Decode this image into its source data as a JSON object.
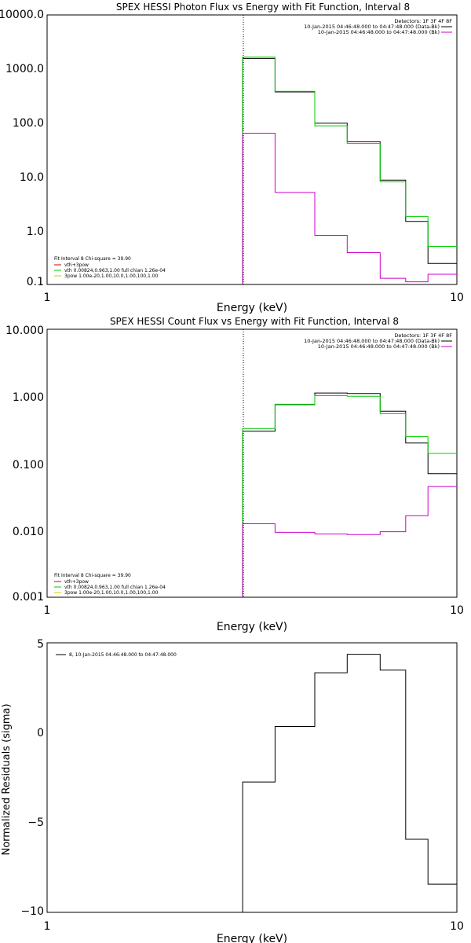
{
  "chart_data": [
    {
      "type": "line",
      "step": true,
      "title": "SPEX HESSI Photon Flux vs Energy with Fit Function, Interval 8",
      "xlabel": "Energy (keV)",
      "ylabel": "",
      "xscale": "log",
      "yscale": "log",
      "xlim": [
        1,
        10
      ],
      "ylim": [
        0.08,
        10000
      ],
      "x_ticks": [
        {
          "value": 1,
          "label": "1"
        },
        {
          "value": 10,
          "label": "10"
        }
      ],
      "y_ticks": [
        {
          "value": 0.1,
          "label": "0.1"
        },
        {
          "value": 1,
          "label": "1.0"
        },
        {
          "value": 10,
          "label": "10.0"
        },
        {
          "value": 100,
          "label": "100.0"
        },
        {
          "value": 1000,
          "label": "1000.0"
        },
        {
          "value": 10000,
          "label": "10000.0"
        }
      ],
      "vline_x": 3.0,
      "detectors": "Detectors: 1F 3F 4F 8F",
      "data_legend": [
        {
          "text": "10-Jan-2015 04:46:48.000 to 04:47:48.000 (Data-Bk)",
          "color": "#000000"
        },
        {
          "text": "10-Jan-2015 04:46:48.000 to 04:47:48.000 (Bk)",
          "color": "#cc00cc"
        }
      ],
      "fit_header": "Fit Interval  8    Chi-square = 39.90",
      "fit_legend": [
        {
          "text": "vth+3pow",
          "color": "#cc0000"
        },
        {
          "text": "vth 0.00824,0.963,1.00   full chian 1.26e-04",
          "color": "#00cc00"
        },
        {
          "text": "3pow 1.00e-20,1.00,10.0,1.00,100,1.00",
          "color": "#cccc00"
        }
      ],
      "series": [
        {
          "name": "Data-Bk",
          "color": "#000000",
          "edges": [
            3.0,
            3.6,
            4.5,
            5.4,
            6.5,
            7.5,
            8.5,
            10.0
          ],
          "values": [
            1500,
            350,
            90,
            40,
            7.5,
            1.25,
            0.2
          ]
        },
        {
          "name": "vth+3pow",
          "color": "#00cc00",
          "edges": [
            3.0,
            3.6,
            4.5,
            5.4,
            6.5,
            7.5,
            8.5,
            10.0
          ],
          "values": [
            1600,
            360,
            80,
            37,
            7,
            1.55,
            0.42
          ]
        },
        {
          "name": "Bk",
          "color": "#cc00cc",
          "edges": [
            3.0,
            3.6,
            4.5,
            5.4,
            6.5,
            7.5,
            8.5,
            10.0
          ],
          "values": [
            58,
            4.4,
            0.68,
            0.32,
            0.105,
            0.09,
            0.125
          ]
        }
      ]
    },
    {
      "type": "line",
      "step": true,
      "title": "SPEX HESSI Count Flux vs Energy with Fit Function, Interval 8",
      "xlabel": "Energy (keV)",
      "ylabel": "",
      "xscale": "log",
      "yscale": "log",
      "xlim": [
        1,
        10
      ],
      "ylim": [
        0.001,
        10
      ],
      "x_ticks": [
        {
          "value": 1,
          "label": "1"
        },
        {
          "value": 10,
          "label": "10"
        }
      ],
      "y_ticks": [
        {
          "value": 0.001,
          "label": "0.001"
        },
        {
          "value": 0.01,
          "label": "0.010"
        },
        {
          "value": 0.1,
          "label": "0.100"
        },
        {
          "value": 1,
          "label": "1.000"
        },
        {
          "value": 10,
          "label": "10.000"
        }
      ],
      "vline_x": 3.0,
      "detectors": "Detectors: 1F 3F 4F 8F",
      "data_legend": [
        {
          "text": "10-Jan-2015 04:46:48.000 to 04:47:48.000 (Data-Bk)",
          "color": "#000000"
        },
        {
          "text": "10-Jan-2015 04:46:48.000 to 04:47:48.000 (Bk)",
          "color": "#cc00cc"
        }
      ],
      "fit_header": "Fit Interval  8    Chi-square = 39.90",
      "fit_legend": [
        {
          "text": "vth+3pow",
          "color": "#cc0000"
        },
        {
          "text": "vth 0.00824,0.963,1.00   full chian 1.26e-04",
          "color": "#00cc00"
        },
        {
          "text": "3pow 1.00e-20,1.00,10.0,1.00,100,1.00",
          "color": "#cccc00"
        }
      ],
      "series": [
        {
          "name": "Data-Bk",
          "color": "#000000",
          "edges": [
            3.0,
            3.6,
            4.5,
            5.4,
            6.5,
            7.5,
            8.5,
            9.4,
            10.0
          ],
          "values": [
            0.3,
            0.75,
            1.12,
            1.1,
            0.6,
            0.2,
            0.07,
            0.07
          ]
        },
        {
          "name": "vth+3pow",
          "color": "#00cc00",
          "edges": [
            3.0,
            3.6,
            4.5,
            5.4,
            6.5,
            7.5,
            8.5,
            9.4,
            10.0
          ],
          "values": [
            0.33,
            0.76,
            1.02,
            1.0,
            0.55,
            0.25,
            0.14,
            0.14
          ]
        },
        {
          "name": "Bk",
          "color": "#cc00cc",
          "edges": [
            3.0,
            3.6,
            4.5,
            5.4,
            6.5,
            7.5,
            8.5,
            9.4,
            10.0
          ],
          "values": [
            0.0125,
            0.0093,
            0.0088,
            0.0086,
            0.0095,
            0.0165,
            0.045,
            0.045
          ]
        }
      ]
    },
    {
      "type": "line",
      "step": true,
      "title": "",
      "xlabel": "Energy (keV)",
      "ylabel": "Normalized Residuals (sigma)",
      "xscale": "log",
      "yscale": "linear",
      "xlim": [
        1,
        10
      ],
      "ylim": [
        -10.3,
        5
      ],
      "x_ticks": [
        {
          "value": 1,
          "label": "1"
        },
        {
          "value": 10,
          "label": "10"
        }
      ],
      "y_ticks": [
        {
          "value": 5,
          "label": "5"
        },
        {
          "value": 0,
          "label": "0"
        },
        {
          "value": -5,
          "label": "−5"
        },
        {
          "value": -10,
          "label": "−10"
        }
      ],
      "legend": [
        {
          "text": "8, 10-Jan-2015 04:46:48.000 to 04:47:48.000",
          "color": "#000000"
        }
      ],
      "series": [
        {
          "name": "8, 10-Jan-2015 04:46:48.000 to 04:47:48.000",
          "color": "#000000",
          "edges": [
            3.0,
            3.6,
            4.5,
            5.4,
            6.5,
            7.5,
            8.5,
            9.4,
            10.0
          ],
          "values": [
            -2.9,
            0.25,
            3.3,
            4.35,
            3.45,
            -6.15,
            -8.7,
            -8.7
          ],
          "start_from": -10.3
        }
      ]
    }
  ]
}
